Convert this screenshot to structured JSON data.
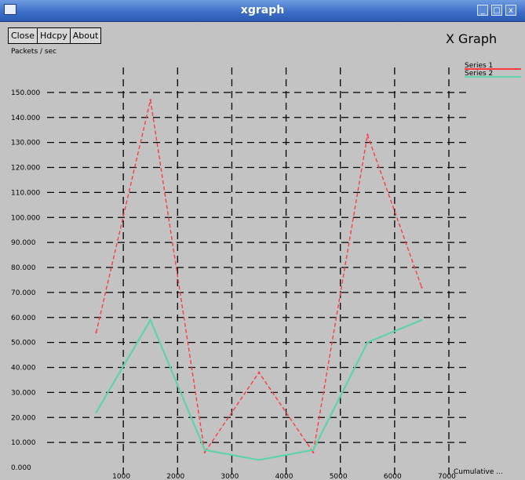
{
  "window": {
    "title": "xgraph",
    "controls": [
      "_",
      "□",
      "x"
    ]
  },
  "menu": {
    "close": "Close",
    "hardcopy": "Hdcpy",
    "about": "About"
  },
  "graph_title": "X Graph",
  "chart_data": {
    "type": "line",
    "title": "X Graph",
    "ylabel": "Packets / sec",
    "xlabel": "Cumulative ...",
    "ylim": [
      0,
      160
    ],
    "yticks": [
      "0.000",
      "10.000",
      "20.000",
      "30.000",
      "40.000",
      "50.000",
      "60.000",
      "70.000",
      "80.000",
      "90.000",
      "100.000",
      "110.000",
      "120.000",
      "130.000",
      "140.000",
      "150.000"
    ],
    "xticks": [
      "1000",
      "2000",
      "3000",
      "4000",
      "5000",
      "6000",
      "7000"
    ],
    "x": [
      0.5,
      1.5,
      2.5,
      3.5,
      4.5,
      5.5,
      6.5
    ],
    "grid": true,
    "legend_position": "top-right",
    "series": [
      {
        "name": "Series 1",
        "color": "#ff3b3b",
        "values": [
          54,
          147,
          6,
          38,
          6,
          133,
          72
        ]
      },
      {
        "name": "Series 2",
        "color": "#5fd3a8",
        "values": [
          22,
          59,
          7,
          3,
          7,
          50,
          59
        ]
      }
    ]
  }
}
